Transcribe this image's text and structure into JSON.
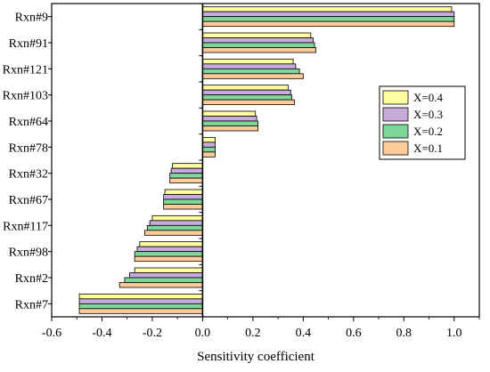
{
  "chart_data": {
    "type": "bar",
    "orientation": "horizontal",
    "title": "",
    "xlabel": "Sensitivity coefficient",
    "ylabel": "",
    "xlim": [
      -0.6,
      1.1
    ],
    "xticks": [
      "-0.6",
      "-0.4",
      "-0.2",
      "0.0",
      "0.2",
      "0.4",
      "0.6",
      "0.8",
      "1.0"
    ],
    "grid": false,
    "legend_position": "right",
    "categories": [
      "Rxn#9",
      "Rxn#91",
      "Rxn#121",
      "Rxn#103",
      "Rxn#64",
      "Rxn#78",
      "Rxn#32",
      "Rxn#67",
      "Rxn#117",
      "Rxn#98",
      "Rxn#2",
      "Rxn#7"
    ],
    "series": [
      {
        "name": "X=0.4",
        "color": "#FFFFA0",
        "values": [
          0.99,
          0.43,
          0.36,
          0.34,
          0.21,
          0.05,
          -0.12,
          -0.15,
          -0.2,
          -0.25,
          -0.27,
          -0.49
        ]
      },
      {
        "name": "X=0.3",
        "color": "#C8AADC",
        "values": [
          1.0,
          0.44,
          0.37,
          0.35,
          0.215,
          0.05,
          -0.125,
          -0.155,
          -0.21,
          -0.26,
          -0.29,
          -0.49
        ]
      },
      {
        "name": "X=0.2",
        "color": "#7FD69A",
        "values": [
          1.0,
          0.445,
          0.385,
          0.355,
          0.22,
          0.05,
          -0.13,
          -0.155,
          -0.22,
          -0.27,
          -0.31,
          -0.49
        ]
      },
      {
        "name": "X=0.1",
        "color": "#FFCC99",
        "values": [
          1.0,
          0.45,
          0.4,
          0.365,
          0.22,
          0.05,
          -0.13,
          -0.155,
          -0.23,
          -0.27,
          -0.33,
          -0.49
        ]
      }
    ]
  }
}
